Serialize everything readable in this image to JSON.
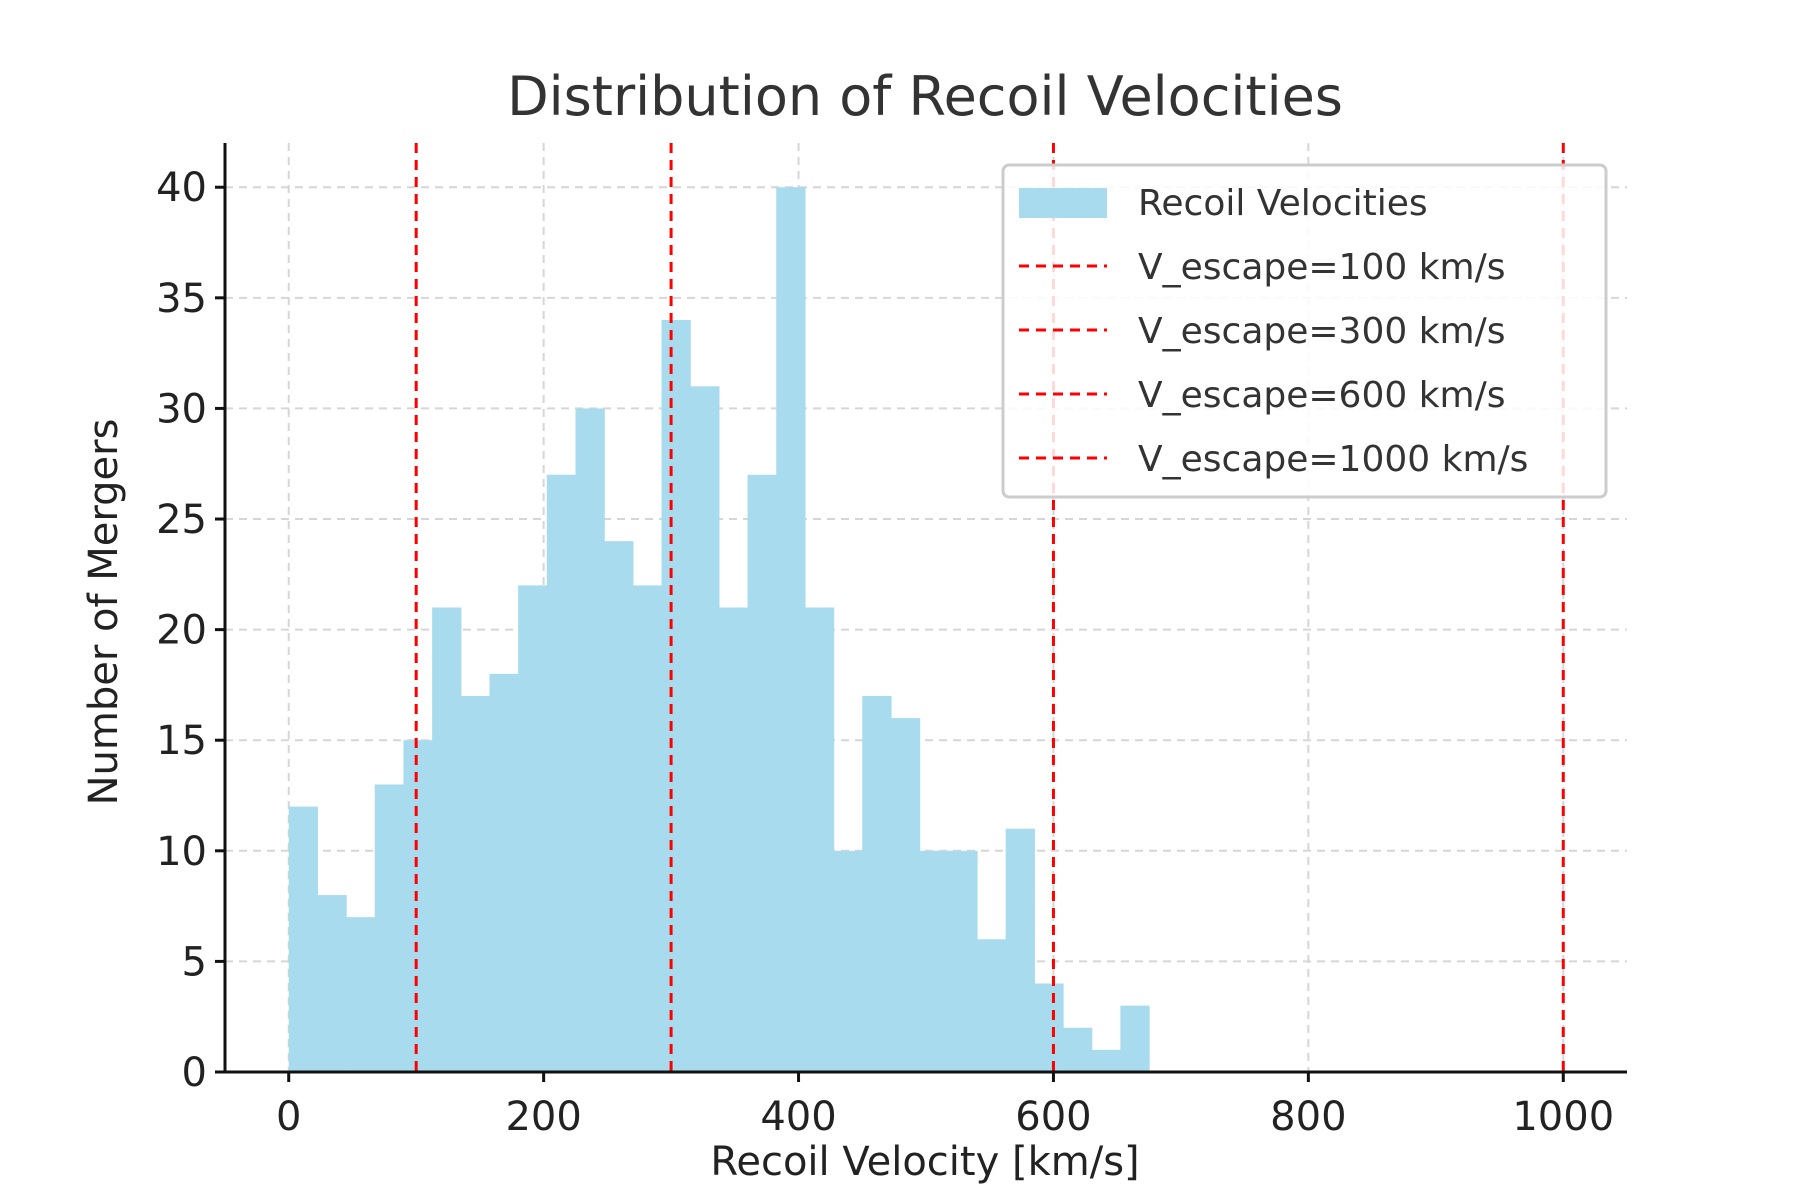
{
  "chart_data": {
    "type": "bar",
    "title": "Distribution of Recoil Velocities",
    "xlabel": "Recoil Velocity [km/s]",
    "ylabel": "Number of Mergers",
    "xlim": [
      -50,
      1050
    ],
    "ylim": [
      0,
      42
    ],
    "xticks": [
      0,
      200,
      400,
      600,
      800,
      1000
    ],
    "yticks": [
      0,
      5,
      10,
      15,
      20,
      25,
      30,
      35,
      40
    ],
    "grid": true,
    "legend_position": "top-right",
    "bar_color": "#a8dbee",
    "line_color": "#ff0000",
    "series": [
      {
        "name": "Recoil Velocities",
        "bin_width": 22.5,
        "bin_edges_start": 0,
        "values": [
          12,
          8,
          7,
          13,
          15,
          21,
          17,
          18,
          22,
          27,
          30,
          24,
          22,
          34,
          31,
          21,
          27,
          40,
          21,
          10,
          17,
          16,
          10,
          10,
          6,
          11,
          4,
          2,
          1,
          3
        ]
      }
    ],
    "reference_lines": [
      {
        "name": "V_escape=100 km/s",
        "x": 100
      },
      {
        "name": "V_escape=300 km/s",
        "x": 300
      },
      {
        "name": "V_escape=600 km/s",
        "x": 600
      },
      {
        "name": "V_escape=1000 km/s",
        "x": 1000
      }
    ]
  }
}
